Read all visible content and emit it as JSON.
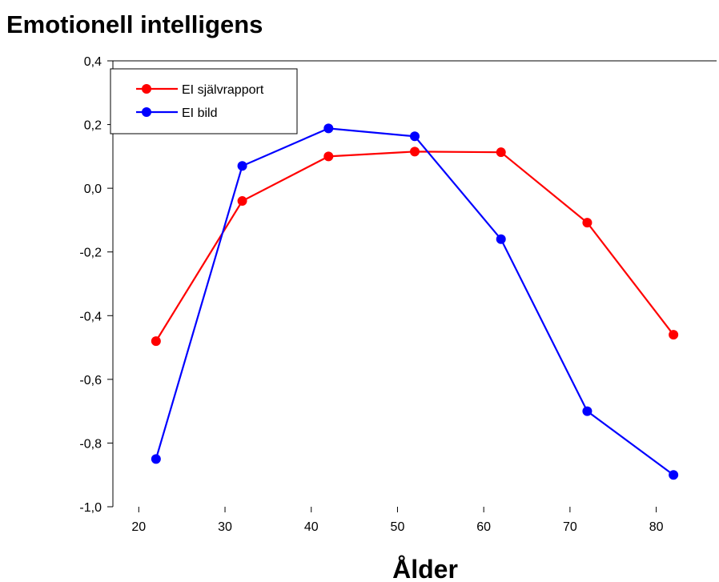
{
  "chart_data": {
    "type": "line",
    "title": "Emotionell intelligens",
    "xlabel": "Ålder",
    "ylabel": "",
    "xlim": [
      17,
      87
    ],
    "ylim": [
      -1.0,
      0.4
    ],
    "x_ticks": [
      20,
      30,
      40,
      50,
      60,
      70,
      80
    ],
    "x_tick_labels": [
      "20",
      "30",
      "40",
      "50",
      "60",
      "70",
      "80"
    ],
    "y_ticks": [
      -1.0,
      -0.8,
      -0.6,
      -0.4,
      -0.2,
      0.0,
      0.2,
      0.4
    ],
    "y_tick_labels": [
      "-1,0",
      "-0,8",
      "-0,6",
      "-0,4",
      "-0,2",
      "0,0",
      "0,2",
      "0,4"
    ],
    "grid": false,
    "legend_position": "top-left",
    "x": [
      22,
      32,
      42,
      52,
      62,
      72,
      82
    ],
    "series": [
      {
        "name": "EI självrapport",
        "color": "#ff0000",
        "values": [
          -0.48,
          -0.04,
          0.1,
          0.115,
          0.113,
          -0.108,
          -0.46
        ]
      },
      {
        "name": "EI bild",
        "color": "#0000ff",
        "values": [
          -0.85,
          0.07,
          0.188,
          0.163,
          -0.16,
          -0.7,
          -0.9
        ]
      }
    ]
  }
}
